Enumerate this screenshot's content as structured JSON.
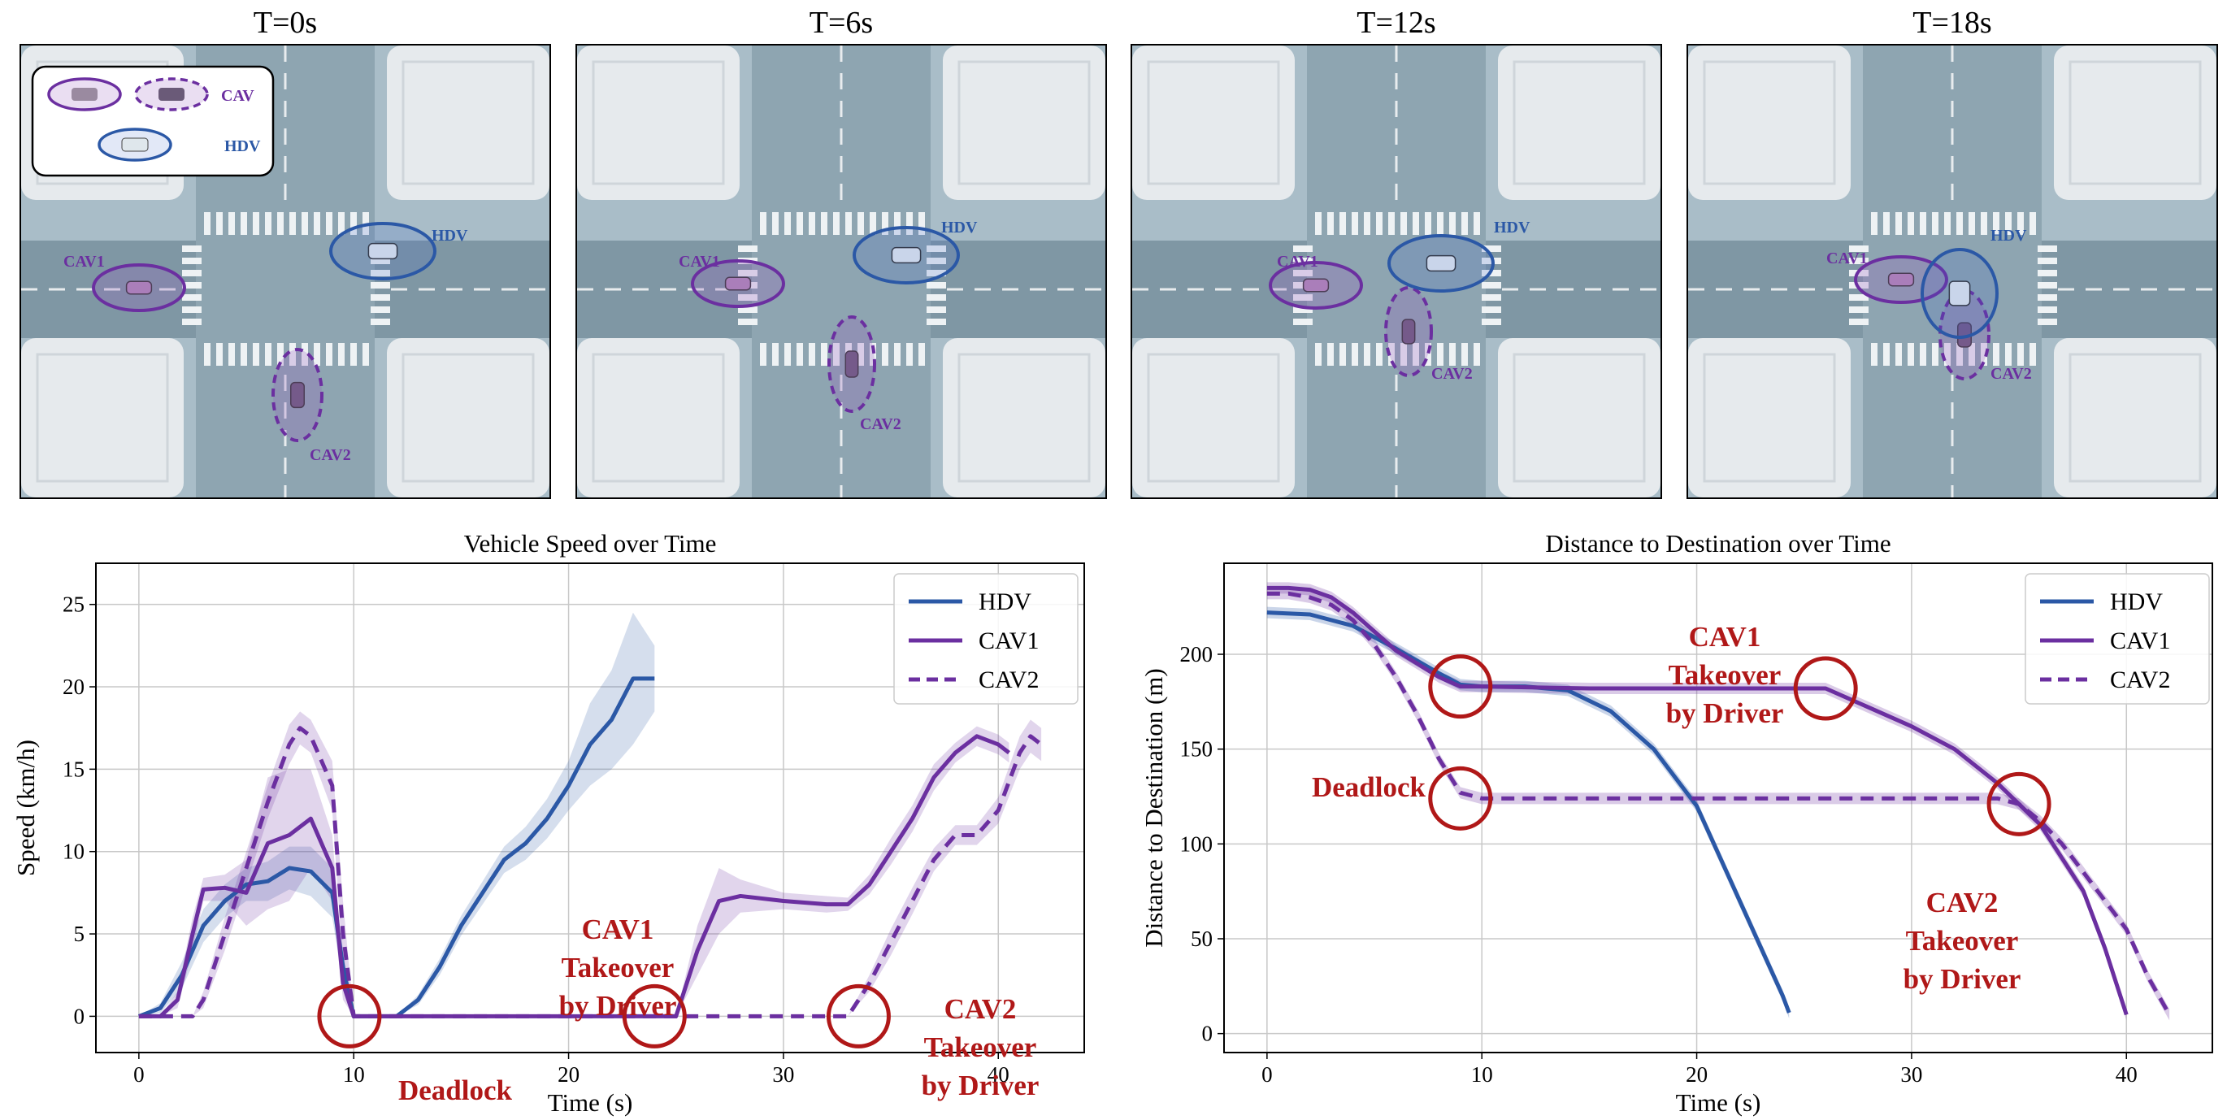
{
  "snapshots": [
    {
      "title": "T=0s",
      "labels": {
        "cav1": "CAV1",
        "cav2": "CAV2",
        "hdv": "HDV"
      }
    },
    {
      "title": "T=6s",
      "labels": {
        "cav1": "CAV1",
        "cav2": "CAV2",
        "hdv": "HDV"
      }
    },
    {
      "title": "T=12s",
      "labels": {
        "cav1": "CAV1",
        "cav2": "CAV2",
        "hdv": "HDV"
      }
    },
    {
      "title": "T=18s",
      "labels": {
        "cav1": "CAV1",
        "cav2": "CAV2",
        "hdv": "HDV"
      }
    }
  ],
  "snapshot_legend": {
    "cav": "CAV",
    "hdv": "HDV"
  },
  "colors": {
    "hdv": "#2b58a6",
    "cav": "#6b2fa0",
    "annotation": "#b01818",
    "road": "#9fb4bf",
    "building": "#e6eaed"
  },
  "chart_data": [
    {
      "type": "line",
      "title": "Vehicle Speed over Time",
      "xlabel": "Time (s)",
      "ylabel": "Speed (km/h)",
      "xlim": [
        -2,
        44
      ],
      "ylim": [
        -2.2,
        27.5
      ],
      "xticks": [
        0,
        10,
        20,
        30,
        40
      ],
      "yticks": [
        0,
        5,
        10,
        15,
        20,
        25
      ],
      "grid": true,
      "legend": "top-right",
      "series": [
        {
          "name": "HDV",
          "style": "solid",
          "color": "#2b58a6",
          "x": [
            0,
            1,
            2,
            3,
            4,
            5,
            6,
            7,
            8,
            9,
            9.5,
            10,
            11,
            12,
            13,
            14,
            15,
            16,
            17,
            18,
            19,
            20,
            21,
            22,
            23,
            24
          ],
          "y": [
            0,
            0.5,
            2.5,
            5.5,
            7,
            8,
            8.2,
            9,
            8.8,
            7.5,
            3,
            0,
            0,
            0,
            1,
            3,
            5.5,
            7.5,
            9.5,
            10.5,
            12,
            14,
            16.5,
            18,
            20.5,
            20.5
          ],
          "band": [
            0,
            0.3,
            0.8,
            1,
            1,
            1,
            1.2,
            1.3,
            1.5,
            1.5,
            1,
            0,
            0,
            0,
            0.3,
            0.5,
            0.6,
            0.7,
            0.8,
            1,
            1.2,
            1.5,
            2.5,
            3,
            4,
            2
          ]
        },
        {
          "name": "CAV1",
          "style": "solid",
          "color": "#6b2fa0",
          "x": [
            0,
            1,
            1.8,
            2.5,
            3,
            4,
            5,
            6,
            7,
            8,
            9,
            9.5,
            10,
            15,
            20,
            24,
            25,
            26,
            27,
            28,
            30,
            32,
            33,
            34,
            35,
            36,
            37,
            38,
            39,
            40,
            40.5
          ],
          "y": [
            0,
            0,
            1,
            5,
            7.7,
            7.8,
            7.5,
            10.5,
            11,
            12,
            9,
            2,
            0,
            0,
            0,
            0,
            0,
            4,
            7,
            7.3,
            7,
            6.8,
            6.8,
            8,
            10,
            12,
            14.5,
            16,
            17,
            16.5,
            16
          ],
          "band": [
            0,
            0,
            0.5,
            1,
            0.7,
            0.8,
            2,
            4,
            4,
            3,
            2,
            1,
            0,
            0,
            0,
            0,
            0,
            1.5,
            2,
            1,
            0.5,
            0.5,
            0.4,
            0.6,
            0.8,
            0.8,
            0.8,
            0.6,
            0.6,
            0.6,
            0.6
          ]
        },
        {
          "name": "CAV2",
          "style": "dashed",
          "color": "#6b2fa0",
          "x": [
            0,
            2,
            2.5,
            3,
            4,
            5,
            6,
            7,
            7.5,
            8,
            9,
            9.5,
            10,
            15,
            20,
            25,
            30,
            33,
            34,
            35,
            36,
            37,
            38,
            39,
            40,
            41,
            41.5,
            42
          ],
          "y": [
            0,
            0,
            0,
            1,
            5,
            9,
            13,
            16.5,
            17.5,
            17,
            14,
            5,
            0,
            0,
            0,
            0,
            0,
            0,
            2,
            4.5,
            7,
            9.5,
            11,
            11,
            12.5,
            16,
            17,
            16.5
          ],
          "band": [
            0,
            0,
            0,
            0.5,
            1,
            1,
            1,
            1.2,
            1,
            1,
            1.5,
            2,
            0,
            0,
            0,
            0,
            0,
            0,
            0.5,
            0.8,
            0.8,
            0.7,
            0.6,
            0.6,
            0.8,
            1,
            1,
            1
          ]
        }
      ],
      "annotations": [
        {
          "text": "Deadlock",
          "x": 9.8,
          "y": 0
        },
        {
          "text": "CAV1 Takeover by Driver",
          "x": 24,
          "y": 0
        },
        {
          "text": "CAV2 Takeover by Driver",
          "x": 33.5,
          "y": 0
        }
      ]
    },
    {
      "type": "line",
      "title": "Distance to Destination over Time",
      "xlabel": "Time (s)",
      "ylabel": "Distance to Destination (m)",
      "xlim": [
        -2,
        44
      ],
      "ylim": [
        -10,
        248
      ],
      "xticks": [
        0,
        10,
        20,
        30,
        40
      ],
      "yticks": [
        0,
        50,
        100,
        150,
        200
      ],
      "grid": true,
      "legend": "top-right",
      "series": [
        {
          "name": "HDV",
          "style": "solid",
          "color": "#2b58a6",
          "x": [
            0,
            2,
            4,
            6,
            8,
            9,
            10,
            12,
            14,
            16,
            18,
            20,
            21,
            22,
            23,
            24,
            24.3
          ],
          "y": [
            222,
            221,
            215,
            203,
            190,
            184,
            183,
            183,
            181,
            170,
            150,
            120,
            95,
            70,
            45,
            20,
            11
          ]
        },
        {
          "name": "CAV1",
          "style": "solid",
          "color": "#6b2fa0",
          "x": [
            0,
            1,
            2,
            3,
            4,
            5,
            6,
            7,
            8,
            9,
            10,
            15,
            20,
            24,
            25,
            26,
            28,
            30,
            32,
            34,
            36,
            38,
            39,
            40
          ],
          "y": [
            235,
            235,
            234,
            230,
            222,
            212,
            202,
            195,
            188,
            183,
            183,
            182,
            182,
            182,
            182,
            182,
            172,
            162,
            150,
            132,
            110,
            75,
            45,
            10
          ]
        },
        {
          "name": "CAV2",
          "style": "dashed",
          "color": "#6b2fa0",
          "x": [
            0,
            1,
            2,
            3,
            4,
            5,
            6,
            7,
            8,
            9,
            10,
            15,
            20,
            25,
            30,
            33,
            34,
            35,
            36,
            37,
            38,
            39,
            40,
            41,
            42
          ],
          "y": [
            232,
            232,
            230,
            226,
            218,
            205,
            188,
            168,
            145,
            127,
            124,
            124,
            124,
            124,
            124,
            124,
            124,
            121,
            112,
            100,
            85,
            70,
            55,
            30,
            10
          ]
        }
      ],
      "annotations": [
        {
          "text": "Deadlock",
          "x": 9,
          "y": 124
        },
        {
          "text": "CAV1 Takeover by Driver",
          "x": 26,
          "y": 182
        },
        {
          "text": "CAV2 Takeover by Driver",
          "x": 35,
          "y": 121
        },
        {
          "text": "",
          "x": 9,
          "y": 183
        }
      ]
    }
  ]
}
